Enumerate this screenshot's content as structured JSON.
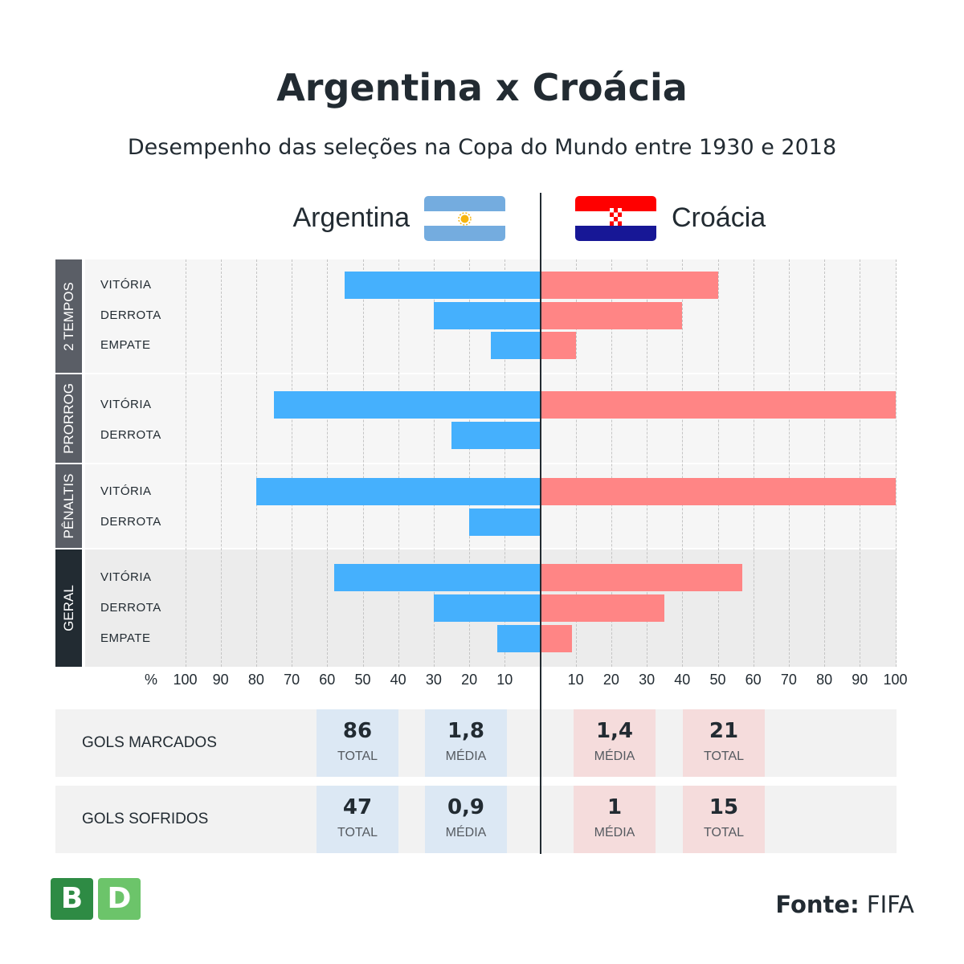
{
  "title": "Argentina x Croácia",
  "subtitle": "Desempenho das seleções na Copa do Mundo entre 1930 e 2018",
  "teams": {
    "left": {
      "name": "Argentina",
      "bar_color": "#45b0fd",
      "stat_color": "#dce8f4"
    },
    "right": {
      "name": "Croácia",
      "bar_color": "#ff8585",
      "stat_color": "#f5dcdc"
    }
  },
  "chart_data": {
    "type": "bar",
    "orientation": "horizontal-diverging",
    "xlabel": "%",
    "ticks_left": [
      100,
      90,
      80,
      70,
      60,
      50,
      40,
      30,
      20,
      10
    ],
    "ticks_right": [
      10,
      20,
      30,
      40,
      50,
      60,
      70,
      80,
      90,
      100
    ],
    "xlim": [
      0,
      100
    ],
    "groups": [
      {
        "label": "2 TEMPOS",
        "rows": [
          {
            "label": "VITÓRIA",
            "argentina": 55,
            "croacia": 50
          },
          {
            "label": "DERROTA",
            "argentina": 30,
            "croacia": 40
          },
          {
            "label": "EMPATE",
            "argentina": 14,
            "croacia": 10
          }
        ]
      },
      {
        "label": "PRORROG",
        "rows": [
          {
            "label": "VITÓRIA",
            "argentina": 75,
            "croacia": 100
          },
          {
            "label": "DERROTA",
            "argentina": 25,
            "croacia": 0
          }
        ]
      },
      {
        "label": "PÊNALTIS",
        "rows": [
          {
            "label": "VITÓRIA",
            "argentina": 80,
            "croacia": 100
          },
          {
            "label": "DERROTA",
            "argentina": 20,
            "croacia": 0
          }
        ]
      },
      {
        "label": "GERAL",
        "rows": [
          {
            "label": "VITÓRIA",
            "argentina": 58,
            "croacia": 57
          },
          {
            "label": "DERROTA",
            "argentina": 30,
            "croacia": 35
          },
          {
            "label": "EMPATE",
            "argentina": 12,
            "croacia": 9
          }
        ]
      }
    ]
  },
  "stats": [
    {
      "label": "GOLS MARCADOS",
      "argentina": {
        "total": "86",
        "media": "1,8"
      },
      "croacia": {
        "media": "1,4",
        "total": "21"
      }
    },
    {
      "label": "GOLS SOFRIDOS",
      "argentina": {
        "total": "47",
        "media": "0,9"
      },
      "croacia": {
        "media": "1",
        "total": "15"
      }
    }
  ],
  "stat_units": {
    "total": "TOTAL",
    "media": "MÉDIA"
  },
  "logo": {
    "letters": [
      "B",
      "D"
    ],
    "colors": [
      "#2e8b44",
      "#6cc46a"
    ]
  },
  "source": {
    "prefix": "Fonte:",
    "name": "FIFA"
  }
}
